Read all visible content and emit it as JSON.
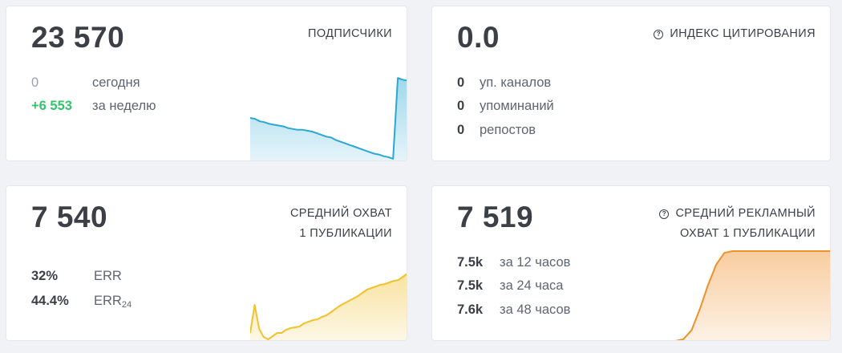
{
  "cards": {
    "subscribers": {
      "value": "23 570",
      "title": "ПОДПИСЧИКИ",
      "stats": [
        {
          "value": "0",
          "label": "сегодня"
        },
        {
          "value": "+6 553",
          "label": "за неделю"
        }
      ],
      "color": "#2aa8d4",
      "sparkline": [
        0.5,
        0.49,
        0.46,
        0.45,
        0.43,
        0.42,
        0.41,
        0.4,
        0.38,
        0.37,
        0.36,
        0.36,
        0.35,
        0.34,
        0.32,
        0.3,
        0.28,
        0.27,
        0.24,
        0.22,
        0.2,
        0.18,
        0.16,
        0.14,
        0.12,
        0.1,
        0.08,
        0.07,
        0.05,
        0.04,
        0.02,
        0.97,
        0.95,
        0.94
      ]
    },
    "citation": {
      "value": "0.0",
      "title": "ИНДЕКС ЦИТИРОВАНИЯ",
      "help_icon": "question-circle-icon",
      "stats": [
        {
          "value": "0",
          "label": "уп. каналов"
        },
        {
          "value": "0",
          "label": "упоминаний"
        },
        {
          "value": "0",
          "label": "репостов"
        }
      ],
      "color": "#3cc46a",
      "sparkline": [
        0,
        0
      ]
    },
    "reach": {
      "value": "7 540",
      "title_line1": "СРЕДНИЙ ОХВАТ",
      "title_line2": "1 ПУБЛИКАЦИИ",
      "stats": [
        {
          "value": "32%",
          "label": "ERR"
        },
        {
          "value": "44.4%",
          "label": "ERR",
          "label_sub": "24"
        }
      ],
      "color": "#f2c12e",
      "sparkline": [
        0.1,
        0.45,
        0.15,
        0.05,
        0.02,
        0.06,
        0.1,
        0.1,
        0.14,
        0.16,
        0.17,
        0.18,
        0.22,
        0.24,
        0.26,
        0.27,
        0.3,
        0.32,
        0.36,
        0.4,
        0.44,
        0.47,
        0.5,
        0.53,
        0.56,
        0.6,
        0.64,
        0.66,
        0.68,
        0.7,
        0.71,
        0.73,
        0.75,
        0.76,
        0.8,
        0.84
      ]
    },
    "ad_reach": {
      "value": "7 519",
      "title_line1": "СРЕДНИЙ РЕКЛАМНЫЙ",
      "title_line2": "ОХВАТ 1 ПУБЛИКАЦИИ",
      "help_icon": "question-circle-icon",
      "stats": [
        {
          "value": "7.5k",
          "label": "за 12 часов"
        },
        {
          "value": "7.5k",
          "label": "за 24 часа"
        },
        {
          "value": "7.6k",
          "label": "за 48 часов"
        }
      ],
      "color": "#f0902a",
      "sparkline": [
        0.0,
        0.02,
        0.12,
        0.35,
        0.62,
        0.85,
        0.98,
        1.0,
        1.0,
        1.0,
        1.0,
        1.0,
        1.0,
        1.0,
        1.0,
        1.0,
        1.0,
        1.0,
        1.0,
        1.0
      ]
    }
  }
}
